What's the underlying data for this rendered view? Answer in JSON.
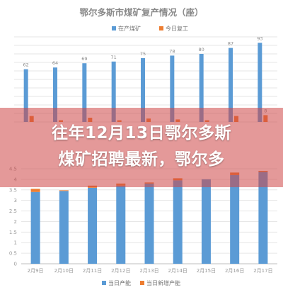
{
  "banner": {
    "headline": "往年12月13日鄂尔多斯\n煤矿招聘最新，鄂尔多"
  },
  "colors": {
    "blue": "#5b9bd5",
    "orange": "#ed7d31",
    "grid": "#e6e6e6",
    "axis": "#bfbfbf"
  },
  "chart_data": [
    {
      "type": "bar",
      "title": "鄂尔多斯市煤矿复产情况（座）",
      "categories": [
        "",
        "",
        "",
        "",
        "",
        "",
        "",
        "",
        ""
      ],
      "ylim": [
        0,
        100
      ],
      "grid": true,
      "legend": "top",
      "series": [
        {
          "name": "在产煤矿",
          "color": "#5b9bd5",
          "values": [
            62,
            64,
            69,
            71,
            75,
            78,
            80,
            87,
            93
          ]
        },
        {
          "name": "今日复工",
          "color": "#ed7d31",
          "values": [
            7,
            2,
            5,
            2,
            4,
            3,
            2,
            7,
            8
          ]
        }
      ],
      "labels": {
        "blue": [
          "62",
          "64",
          "69",
          "71",
          "75",
          "78",
          "80",
          "87",
          "93"
        ],
        "orange": [
          "",
          "",
          "",
          "",
          "",
          "",
          "",
          "",
          "8"
        ]
      }
    },
    {
      "type": "bar",
      "stacked": true,
      "title": "",
      "categories": [
        "2月9日",
        "2月10日",
        "2月11日",
        "2月12日",
        "2月13日",
        "2月14日",
        "2月15日",
        "2月16日",
        "2月17日"
      ],
      "ylim": [
        0,
        4.5
      ],
      "yticks": [
        "0",
        "0.5",
        "1",
        "1.5",
        "2",
        "2.5",
        "3",
        "3.5",
        "4",
        "4.5"
      ],
      "grid": true,
      "legend": "bottom",
      "series": [
        {
          "name": "当日产能",
          "color": "#5b9bd5",
          "values": [
            3.4,
            3.45,
            3.6,
            3.7,
            3.8,
            3.95,
            4.0,
            4.2,
            4.35
          ]
        },
        {
          "name": "当日新增产能",
          "color": "#ed7d31",
          "values": [
            0.15,
            0.03,
            0.1,
            0.1,
            0.05,
            0.1,
            0.0,
            0.12,
            0.05
          ]
        }
      ]
    }
  ]
}
